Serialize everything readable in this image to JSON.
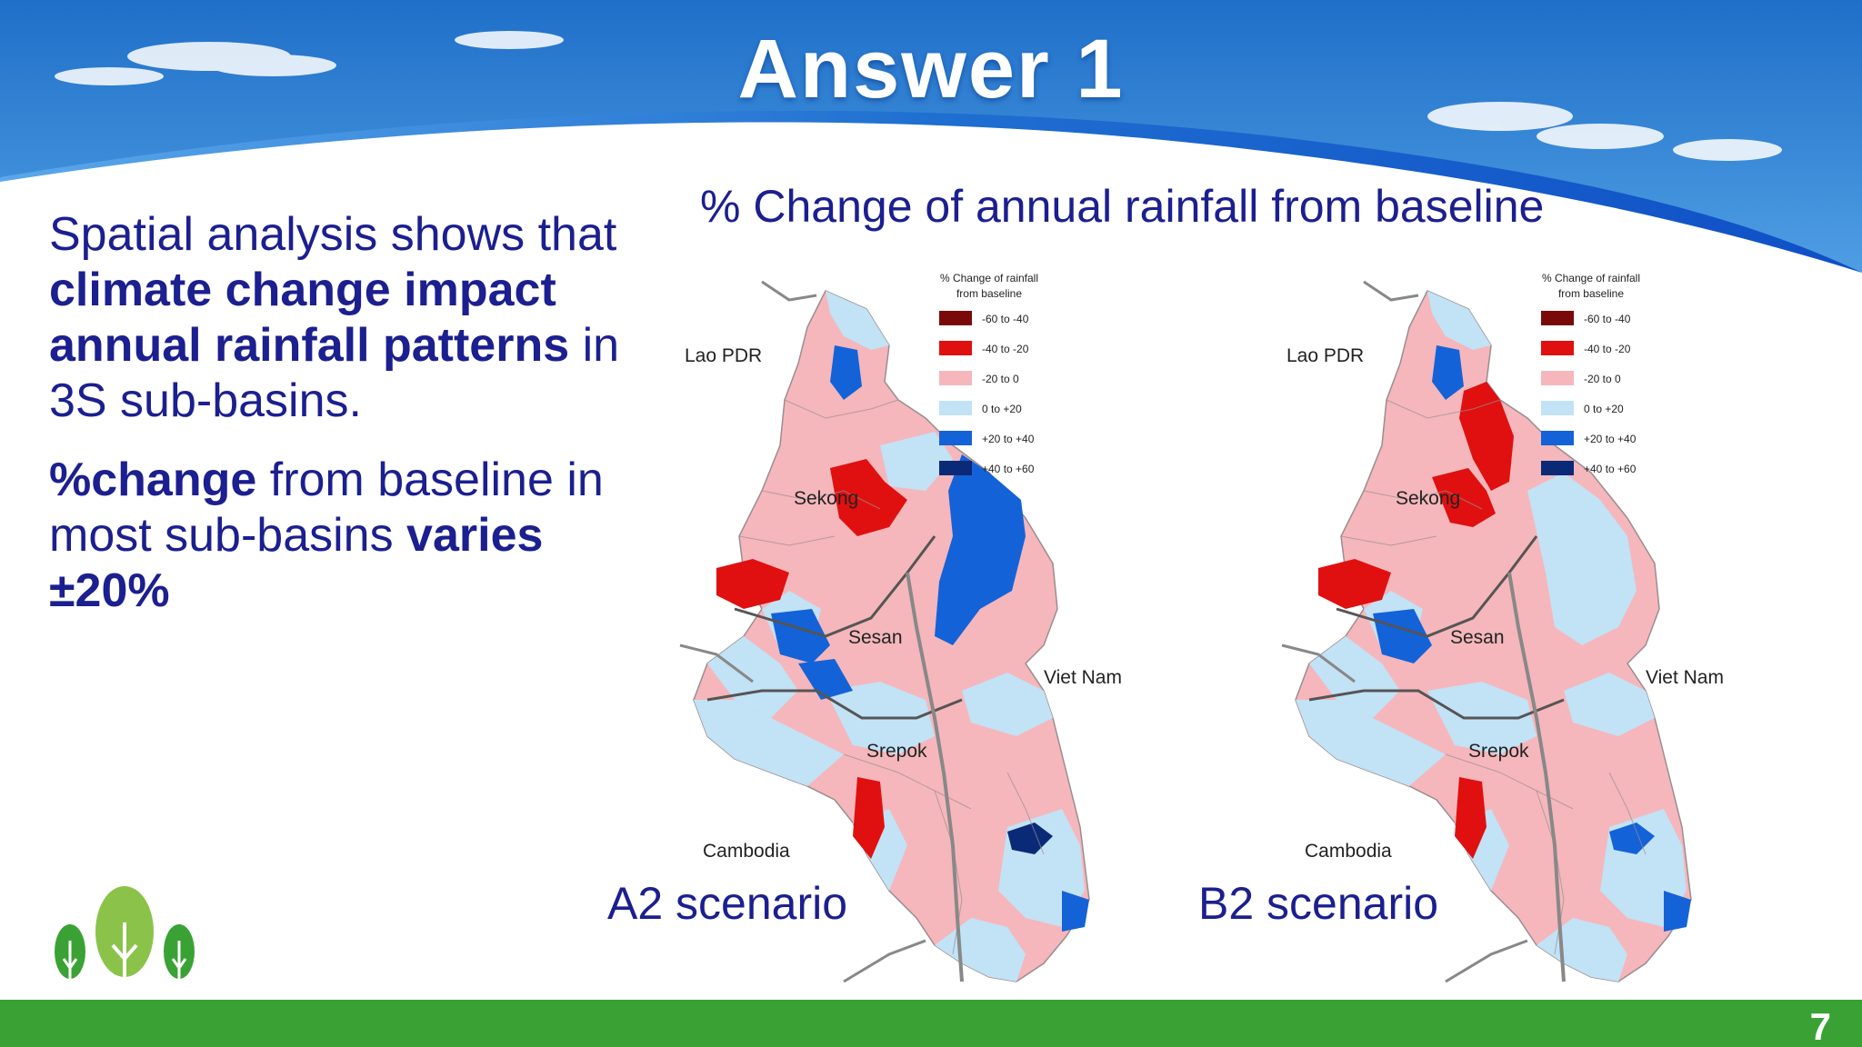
{
  "slide": {
    "title": "Answer 1",
    "page_number": "7",
    "body": {
      "p1": {
        "t1": "Spatial analysis shows that ",
        "b1": "climate change impact annual rainfall patterns",
        "t2": " in 3S sub-basins."
      },
      "p2": {
        "b1": "%change",
        "t1": " from baseline in most sub-basins ",
        "b2": "varies ±20%"
      }
    },
    "figure_title": "% Change of annual rainfall from baseline"
  },
  "legend": {
    "title_line1": "% Change of rainfall",
    "title_line2": "from baseline",
    "classes": [
      {
        "label": "-60 to -40",
        "color": "#7a0a0a"
      },
      {
        "label": "-40 to -20",
        "color": "#e01010"
      },
      {
        "label": "-20 to 0",
        "color": "#f5b7bb"
      },
      {
        "label": "0 to +20",
        "color": "#c2e2f6"
      },
      {
        "label": "+20 to +40",
        "color": "#1462d8"
      },
      {
        "label": "+40 to +60",
        "color": "#0a2a78"
      }
    ]
  },
  "maps": {
    "a2": {
      "scenario_label": "A2 scenario",
      "place_labels": {
        "lao": "Lao PDR",
        "sekong": "Sekong",
        "sesan": "Sesan",
        "vietnam": "Viet Nam",
        "srepok": "Srepok",
        "cambodia": "Cambodia"
      }
    },
    "b2": {
      "scenario_label": "B2 scenario",
      "place_labels": {
        "lao": "Lao PDR",
        "sekong": "Sekong",
        "sesan": "Sesan",
        "vietnam": "Viet Nam",
        "srepok": "Srepok",
        "cambodia": "Cambodia"
      }
    }
  },
  "icons": {
    "logo": "three-trees-logo"
  }
}
